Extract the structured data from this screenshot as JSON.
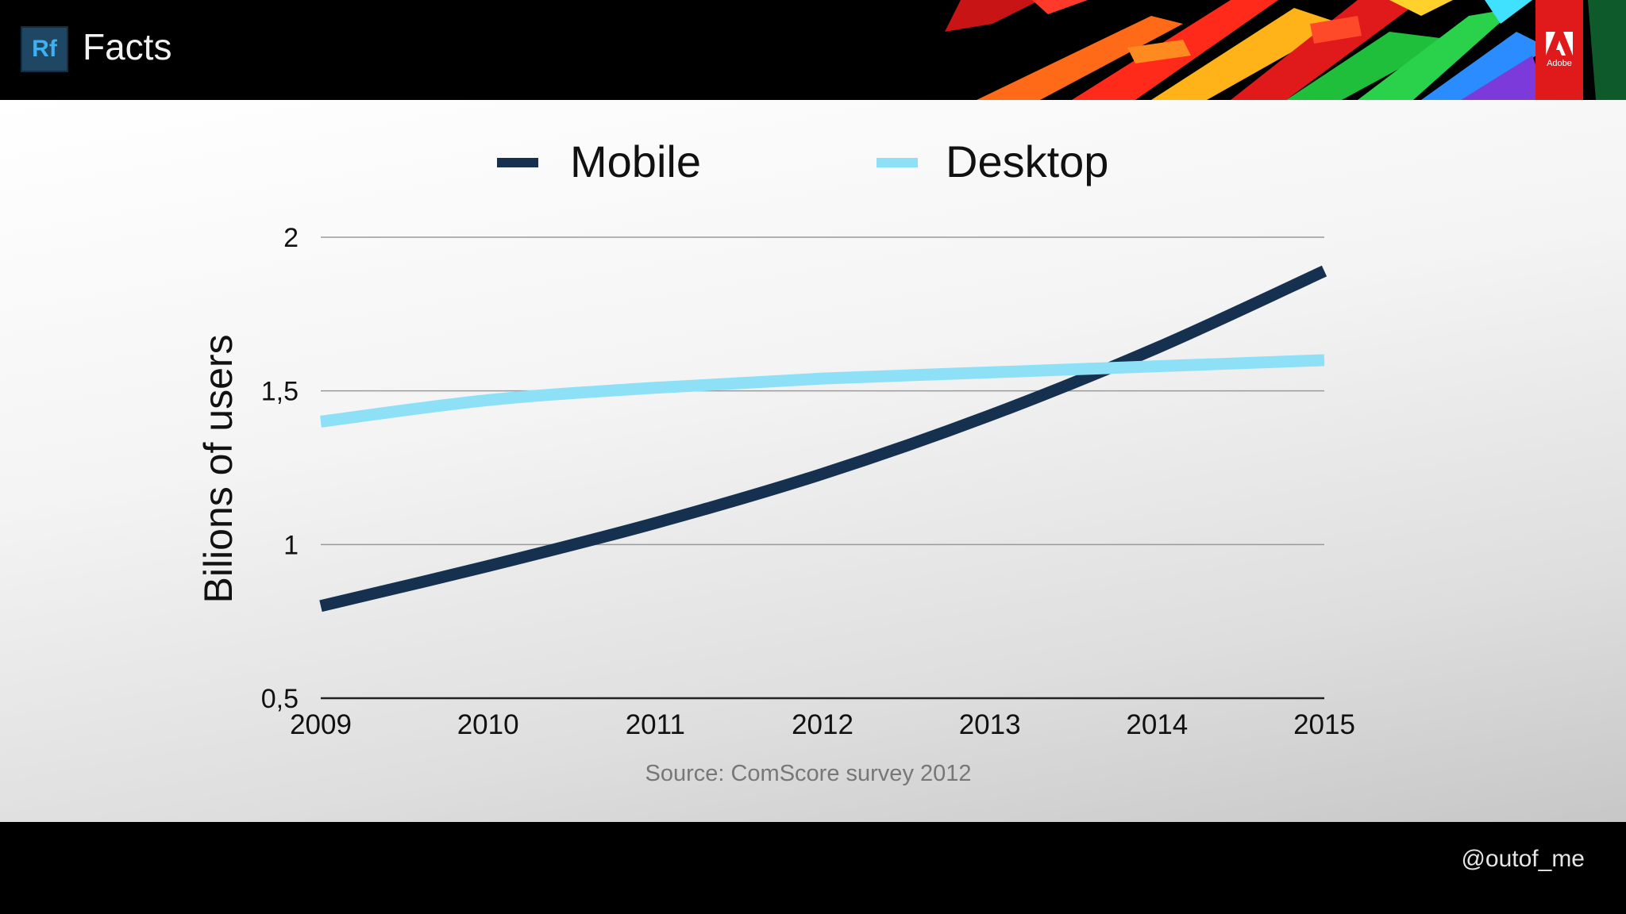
{
  "header": {
    "app_badge": "Rf",
    "title": "Facts",
    "logo_text": "Adobe",
    "logo_icon": "adobe-logo-icon"
  },
  "footer": {
    "handle": "@outof_me"
  },
  "colors": {
    "mobile": "#15314f",
    "desktop": "#8ee0f7",
    "grid": "#9a9a9a",
    "axis": "#222222",
    "source": "#777777"
  },
  "chart_data": {
    "type": "line",
    "title": "",
    "xlabel": "",
    "ylabel": "Bilions of users",
    "x": [
      2009,
      2010,
      2011,
      2012,
      2013,
      2014,
      2015
    ],
    "x_tick_labels": [
      "2009",
      "2010",
      "2011",
      "2012",
      "2013",
      "2014",
      "2015"
    ],
    "y_ticks": [
      0.5,
      1,
      1.5,
      2
    ],
    "y_tick_labels": [
      "0,5",
      "1",
      "1,5",
      "2"
    ],
    "ylim": [
      0.5,
      2
    ],
    "xlim": [
      2009,
      2015
    ],
    "grid": "horizontal",
    "legend_position": "top",
    "series": [
      {
        "name": "Mobile",
        "values": [
          0.8,
          0.93,
          1.07,
          1.23,
          1.42,
          1.64,
          1.89
        ]
      },
      {
        "name": "Desktop",
        "values": [
          1.4,
          1.47,
          1.51,
          1.54,
          1.56,
          1.58,
          1.6
        ]
      }
    ],
    "source": "Source: ComScore survey 2012"
  }
}
